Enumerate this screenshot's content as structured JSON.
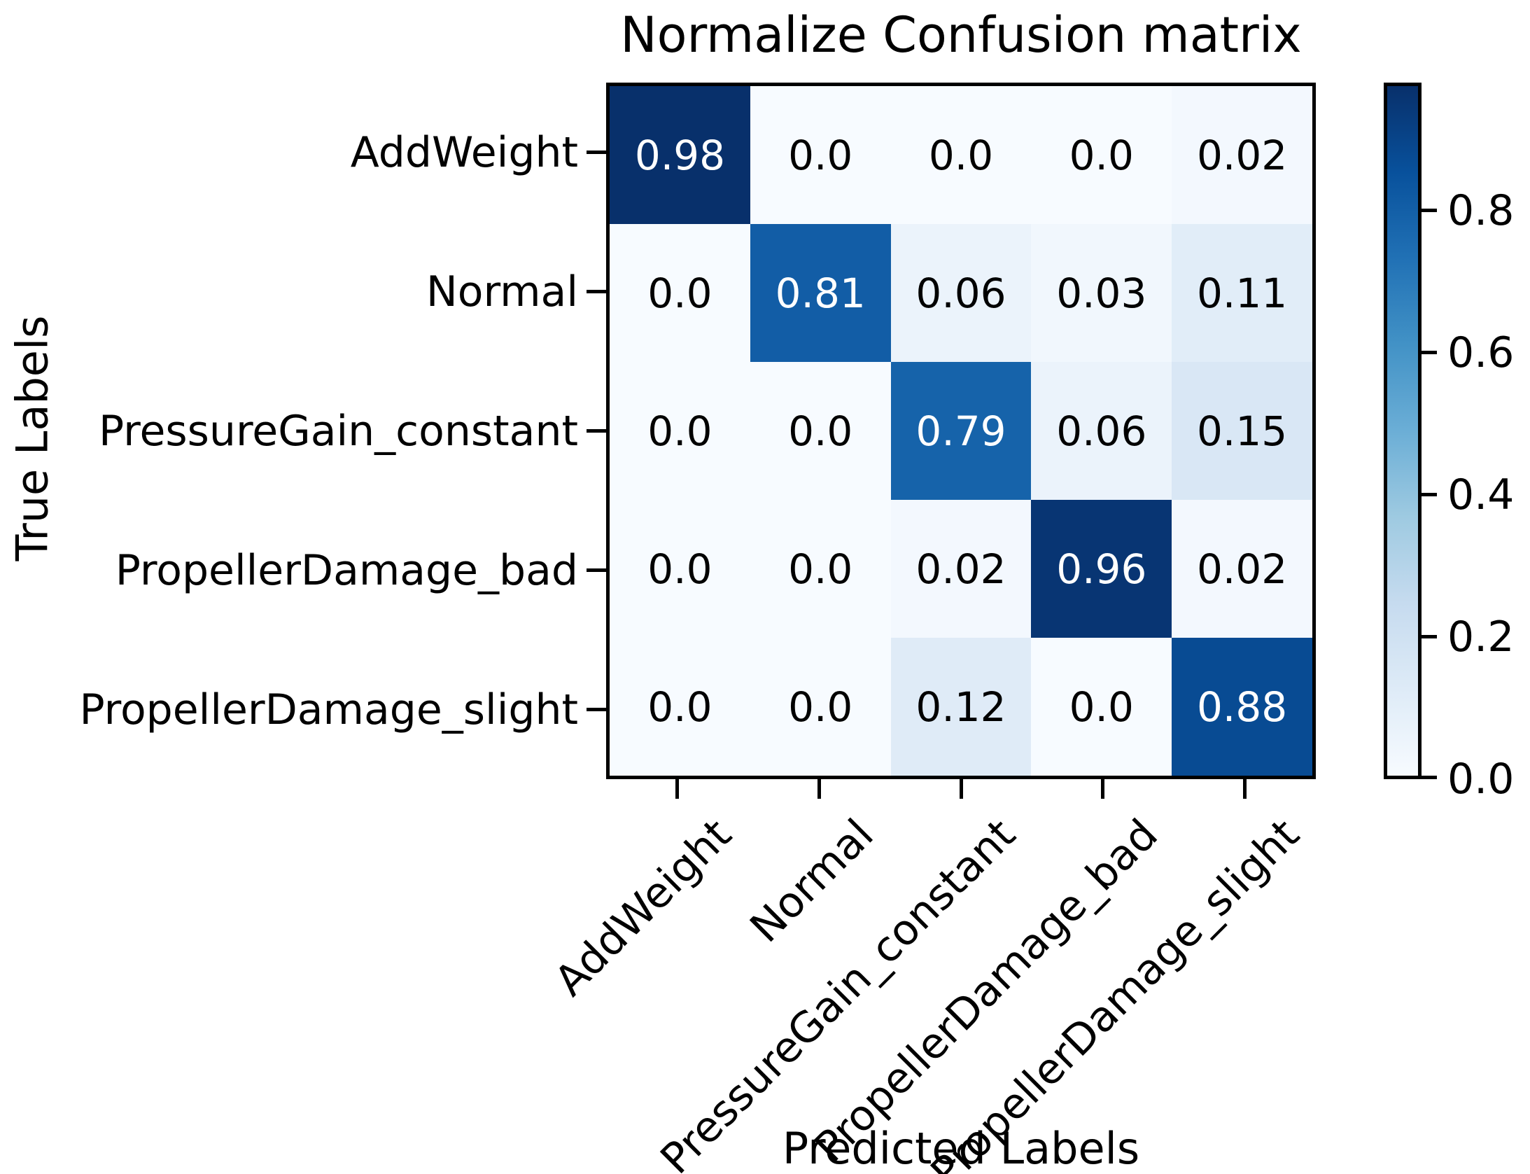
{
  "figure": {
    "background": "#ffffff",
    "text_color": "#000000",
    "axes_edge_color": "#000000"
  },
  "chart_data": {
    "type": "heatmap",
    "title": "Normalize Confusion matrix",
    "xlabel": "Predicted Labels",
    "ylabel": "True Labels",
    "x_categories": [
      "AddWeight",
      "Normal",
      "PressureGain_constant",
      "PropellerDamage_bad",
      "PropellerDamage_slight"
    ],
    "y_categories": [
      "AddWeight",
      "Normal",
      "PressureGain_constant",
      "PropellerDamage_bad",
      "PropellerDamage_slight"
    ],
    "matrix": [
      [
        0.98,
        0.0,
        0.0,
        0.0,
        0.02
      ],
      [
        0.0,
        0.81,
        0.06,
        0.03,
        0.11
      ],
      [
        0.0,
        0.0,
        0.79,
        0.06,
        0.15
      ],
      [
        0.0,
        0.0,
        0.02,
        0.96,
        0.02
      ],
      [
        0.0,
        0.0,
        0.12,
        0.0,
        0.88
      ]
    ],
    "cell_labels": [
      [
        "0.98",
        "0.0",
        "0.0",
        "0.0",
        "0.02"
      ],
      [
        "0.0",
        "0.81",
        "0.06",
        "0.03",
        "0.11"
      ],
      [
        "0.0",
        "0.0",
        "0.79",
        "0.06",
        "0.15"
      ],
      [
        "0.0",
        "0.0",
        "0.02",
        "0.96",
        "0.02"
      ],
      [
        "0.0",
        "0.0",
        "0.12",
        "0.0",
        "0.88"
      ]
    ],
    "vmin": 0.0,
    "vmax": 0.98,
    "grid": false,
    "colorbar_position": "right",
    "colorbar_ticks": [
      {
        "value": 0.8,
        "label": "0.8"
      },
      {
        "value": 0.6,
        "label": "0.6"
      },
      {
        "value": 0.4,
        "label": "0.4"
      },
      {
        "value": 0.2,
        "label": "0.2"
      },
      {
        "value": 0.0,
        "label": "0.0"
      }
    ],
    "colormap": {
      "name": "Blues",
      "stops": [
        [
          0.0,
          "#f7fbff"
        ],
        [
          0.125,
          "#deebf7"
        ],
        [
          0.25,
          "#c6dbef"
        ],
        [
          0.375,
          "#9ecae1"
        ],
        [
          0.5,
          "#6baed6"
        ],
        [
          0.625,
          "#4292c6"
        ],
        [
          0.75,
          "#2171b5"
        ],
        [
          0.875,
          "#08519c"
        ],
        [
          1.0,
          "#08306b"
        ]
      ]
    },
    "cell_text_colors": {
      "high": "#ffffff",
      "low": "#000000"
    }
  }
}
